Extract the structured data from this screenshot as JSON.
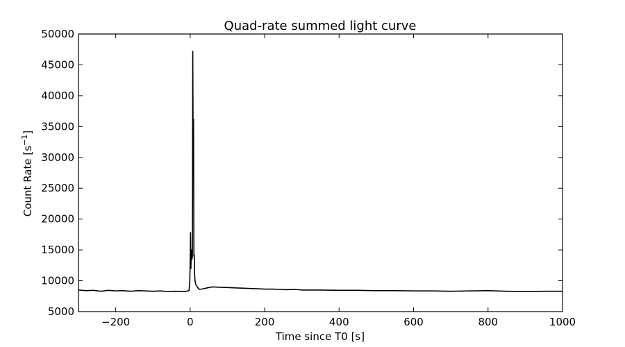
{
  "chart_data": {
    "type": "line",
    "title": "Quad-rate summed light curve",
    "xlabel": "Time since T0 [s]",
    "ylabel_main": "Count Rate [s",
    "ylabel_sup": "−1",
    "ylabel_end": "]",
    "xlim": [
      -300,
      1000
    ],
    "ylim": [
      5000,
      50000
    ],
    "xticks": [
      -200,
      0,
      200,
      400,
      600,
      800,
      1000
    ],
    "xtick_labels": [
      "−200",
      "0",
      "200",
      "400",
      "600",
      "800",
      "1000"
    ],
    "yticks": [
      5000,
      10000,
      15000,
      20000,
      25000,
      30000,
      35000,
      40000,
      45000,
      50000
    ],
    "ytick_labels": [
      "5000",
      "10000",
      "15000",
      "20000",
      "25000",
      "30000",
      "35000",
      "40000",
      "45000",
      "50000"
    ],
    "grid": false,
    "line_color": "#000000",
    "series": [
      {
        "points": [
          [
            -300,
            8500
          ],
          [
            -280,
            8400
          ],
          [
            -260,
            8450
          ],
          [
            -240,
            8300
          ],
          [
            -220,
            8450
          ],
          [
            -200,
            8350
          ],
          [
            -180,
            8400
          ],
          [
            -160,
            8300
          ],
          [
            -140,
            8400
          ],
          [
            -120,
            8350
          ],
          [
            -100,
            8300
          ],
          [
            -80,
            8350
          ],
          [
            -60,
            8250
          ],
          [
            -40,
            8300
          ],
          [
            -20,
            8250
          ],
          [
            -10,
            8300
          ],
          [
            -3,
            8400
          ],
          [
            -1,
            10000
          ],
          [
            0,
            13000
          ],
          [
            1,
            17800
          ],
          [
            2,
            12000
          ],
          [
            3,
            15000
          ],
          [
            4,
            14000
          ],
          [
            5,
            13500
          ],
          [
            6,
            14000
          ],
          [
            7,
            47200
          ],
          [
            8,
            30000
          ],
          [
            9,
            36200
          ],
          [
            10,
            14000
          ],
          [
            11,
            14200
          ],
          [
            12,
            11000
          ],
          [
            13,
            10000
          ],
          [
            15,
            9400
          ],
          [
            20,
            8900
          ],
          [
            25,
            8600
          ],
          [
            35,
            8700
          ],
          [
            50,
            8900
          ],
          [
            60,
            9000
          ],
          [
            80,
            8950
          ],
          [
            100,
            8900
          ],
          [
            120,
            8850
          ],
          [
            140,
            8800
          ],
          [
            160,
            8750
          ],
          [
            180,
            8700
          ],
          [
            200,
            8650
          ],
          [
            220,
            8650
          ],
          [
            240,
            8600
          ],
          [
            260,
            8550
          ],
          [
            280,
            8600
          ],
          [
            300,
            8500
          ],
          [
            350,
            8500
          ],
          [
            400,
            8450
          ],
          [
            450,
            8450
          ],
          [
            500,
            8400
          ],
          [
            550,
            8400
          ],
          [
            600,
            8350
          ],
          [
            650,
            8350
          ],
          [
            700,
            8300
          ],
          [
            750,
            8350
          ],
          [
            800,
            8400
          ],
          [
            850,
            8300
          ],
          [
            900,
            8250
          ],
          [
            950,
            8300
          ],
          [
            1000,
            8300
          ]
        ]
      }
    ]
  }
}
